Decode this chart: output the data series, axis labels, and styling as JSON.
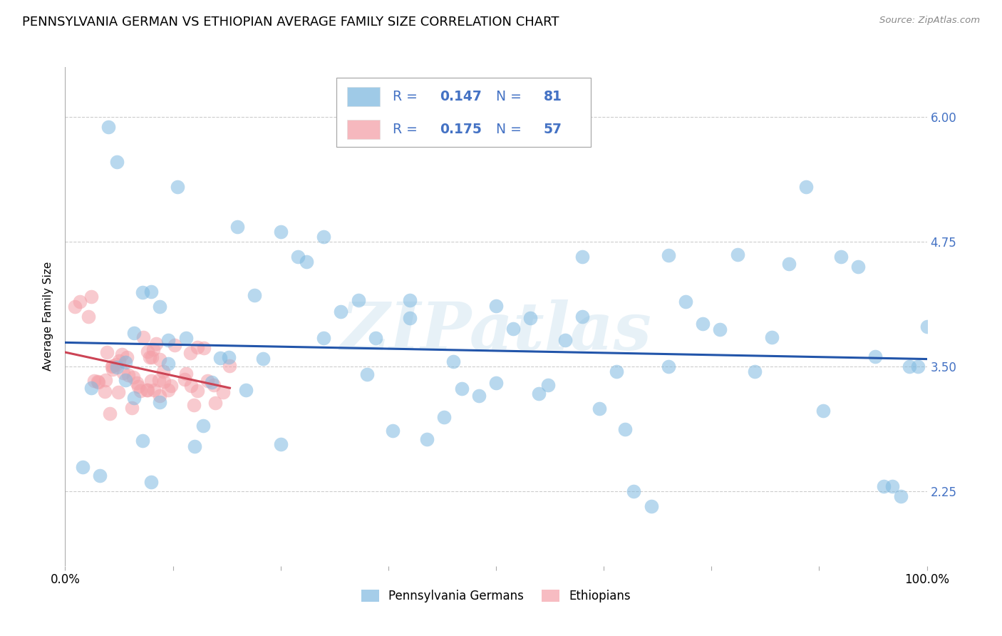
{
  "title": "PENNSYLVANIA GERMAN VS ETHIOPIAN AVERAGE FAMILY SIZE CORRELATION CHART",
  "source": "Source: ZipAtlas.com",
  "ylabel": "Average Family Size",
  "watermark": "ZIPatlas",
  "xmin": 0.0,
  "xmax": 100.0,
  "ymin": 1.5,
  "ymax": 6.5,
  "yticks": [
    2.25,
    3.5,
    4.75,
    6.0
  ],
  "xtick_positions": [
    0.0,
    12.5,
    25.0,
    37.5,
    50.0,
    62.5,
    75.0,
    87.5,
    100.0
  ],
  "xtick_labels": [
    "0.0%",
    "",
    "",
    "",
    "",
    "",
    "",
    "",
    "100.0%"
  ],
  "blue_color": "#7fb9e0",
  "pink_color": "#f4a0a8",
  "blue_line_color": "#2255aa",
  "pink_line_color": "#cc4455",
  "tick_color": "#4472c4",
  "legend_text_color": "#4472c4",
  "title_fontsize": 13,
  "axis_label_fontsize": 11,
  "tick_fontsize": 12,
  "background_color": "#ffffff",
  "grid_color": "#cccccc",
  "r1": "0.147",
  "n1": "81",
  "r2": "0.175",
  "n2": "57",
  "legend_label1": "Pennsylvania Germans",
  "legend_label2": "Ethiopians"
}
